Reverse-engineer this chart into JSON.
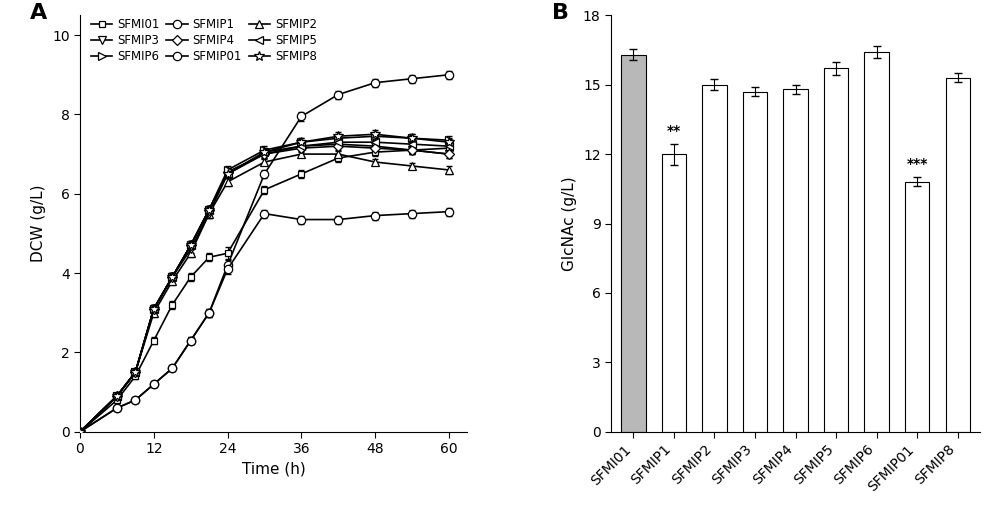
{
  "panel_A_label": "A",
  "panel_B_label": "B",
  "xlabel_A": "Time (h)",
  "ylabel_A": "DCW (g/L)",
  "ylabel_B": "GlcNAc (g/L)",
  "xlim_A": [
    0,
    63
  ],
  "ylim_A": [
    0,
    10.5
  ],
  "ylim_B": [
    0,
    18
  ],
  "xticks_A": [
    0,
    12,
    24,
    36,
    48,
    60
  ],
  "yticks_A": [
    0,
    2,
    4,
    6,
    8,
    10
  ],
  "yticks_B": [
    0,
    3,
    6,
    9,
    12,
    15,
    18
  ],
  "time_points": [
    0,
    6,
    9,
    12,
    15,
    18,
    21,
    24,
    30,
    36,
    42,
    48,
    54,
    60
  ],
  "series": {
    "SFMI01": {
      "values": [
        0,
        0.8,
        1.4,
        2.3,
        3.2,
        3.9,
        4.4,
        4.5,
        6.1,
        6.5,
        6.9,
        7.05,
        7.1,
        7.15
      ],
      "errors": [
        0,
        0.05,
        0.06,
        0.08,
        0.1,
        0.1,
        0.1,
        0.15,
        0.1,
        0.1,
        0.1,
        0.1,
        0.1,
        0.12
      ],
      "marker": "s",
      "fillstyle": "none"
    },
    "SFMIP1": {
      "values": [
        0,
        0.6,
        0.8,
        1.2,
        1.6,
        2.3,
        3.0,
        4.2,
        6.5,
        7.95,
        8.5,
        8.8,
        8.9,
        9.0
      ],
      "errors": [
        0,
        0.05,
        0.06,
        0.06,
        0.07,
        0.08,
        0.1,
        0.12,
        0.1,
        0.12,
        0.1,
        0.1,
        0.1,
        0.1
      ],
      "marker": "o",
      "fillstyle": "none"
    },
    "SFMIP2": {
      "values": [
        0,
        0.9,
        1.5,
        3.0,
        3.8,
        4.5,
        5.5,
        6.3,
        6.8,
        7.0,
        7.0,
        6.8,
        6.7,
        6.6
      ],
      "errors": [
        0,
        0.05,
        0.07,
        0.1,
        0.1,
        0.1,
        0.1,
        0.1,
        0.08,
        0.08,
        0.08,
        0.08,
        0.08,
        0.1
      ],
      "marker": "^",
      "fillstyle": "none"
    },
    "SFMIP3": {
      "values": [
        0,
        0.9,
        1.5,
        3.1,
        3.9,
        4.6,
        5.5,
        6.5,
        7.0,
        7.2,
        7.25,
        7.2,
        7.1,
        7.0
      ],
      "errors": [
        0,
        0.05,
        0.07,
        0.1,
        0.1,
        0.1,
        0.1,
        0.1,
        0.1,
        0.1,
        0.1,
        0.1,
        0.1,
        0.1
      ],
      "marker": "v",
      "fillstyle": "none"
    },
    "SFMIP4": {
      "values": [
        0,
        0.9,
        1.5,
        3.1,
        3.9,
        4.7,
        5.6,
        6.55,
        7.0,
        7.15,
        7.2,
        7.15,
        7.1,
        7.0
      ],
      "errors": [
        0,
        0.05,
        0.07,
        0.1,
        0.1,
        0.1,
        0.1,
        0.1,
        0.1,
        0.1,
        0.1,
        0.1,
        0.1,
        0.1
      ],
      "marker": "D",
      "fillstyle": "none"
    },
    "SFMIP5": {
      "values": [
        0,
        0.9,
        1.5,
        3.1,
        3.9,
        4.7,
        5.6,
        6.5,
        7.05,
        7.2,
        7.3,
        7.3,
        7.25,
        7.2
      ],
      "errors": [
        0,
        0.05,
        0.07,
        0.1,
        0.1,
        0.1,
        0.1,
        0.1,
        0.1,
        0.1,
        0.1,
        0.1,
        0.1,
        0.1
      ],
      "marker": "<",
      "fillstyle": "none"
    },
    "SFMIP6": {
      "values": [
        0,
        0.9,
        1.5,
        3.1,
        3.9,
        4.7,
        5.6,
        6.6,
        7.1,
        7.3,
        7.4,
        7.45,
        7.4,
        7.35
      ],
      "errors": [
        0,
        0.05,
        0.07,
        0.1,
        0.1,
        0.1,
        0.1,
        0.1,
        0.1,
        0.1,
        0.1,
        0.1,
        0.1,
        0.1
      ],
      "marker": ">",
      "fillstyle": "none"
    },
    "SFMIP01": {
      "values": [
        0,
        0.6,
        0.8,
        1.2,
        1.6,
        2.3,
        3.0,
        4.1,
        5.5,
        5.35,
        5.35,
        5.45,
        5.5,
        5.55
      ],
      "errors": [
        0,
        0.05,
        0.06,
        0.06,
        0.07,
        0.08,
        0.1,
        0.12,
        0.1,
        0.1,
        0.1,
        0.1,
        0.1,
        0.1
      ],
      "marker": "o",
      "fillstyle": "none"
    },
    "SFMIP8": {
      "values": [
        0,
        0.9,
        1.5,
        3.1,
        3.9,
        4.7,
        5.6,
        6.5,
        7.05,
        7.3,
        7.45,
        7.5,
        7.4,
        7.3
      ],
      "errors": [
        0,
        0.05,
        0.07,
        0.1,
        0.1,
        0.1,
        0.1,
        0.1,
        0.1,
        0.1,
        0.1,
        0.1,
        0.1,
        0.1
      ],
      "marker": "*",
      "fillstyle": "none"
    }
  },
  "legend_col1": [
    "SFMI01",
    "SFMIP1",
    "SFMIP2"
  ],
  "legend_col2": [
    "SFMIP3",
    "SFMIP4",
    "SFMIP5"
  ],
  "legend_col3": [
    "SFMIP6",
    "SFMIP01",
    "SFMIP8"
  ],
  "bar_categories": [
    "SFMI01",
    "SFMIP1",
    "SFMIP2",
    "SFMIP3",
    "SFMIP4",
    "SFMIP5",
    "SFMIP6",
    "SFMIP01",
    "SFMIP8"
  ],
  "bar_values": [
    16.3,
    12.0,
    15.0,
    14.7,
    14.8,
    15.7,
    16.4,
    10.8,
    15.3
  ],
  "bar_errors": [
    0.25,
    0.45,
    0.25,
    0.2,
    0.2,
    0.3,
    0.25,
    0.2,
    0.2
  ],
  "bar_colors": [
    "#b8b8b8",
    "white",
    "white",
    "white",
    "white",
    "white",
    "white",
    "white",
    "white"
  ],
  "bar_significance": [
    "",
    "**",
    "",
    "",
    "",
    "",
    "",
    "***",
    ""
  ],
  "font_size": 11,
  "tick_font_size": 10
}
